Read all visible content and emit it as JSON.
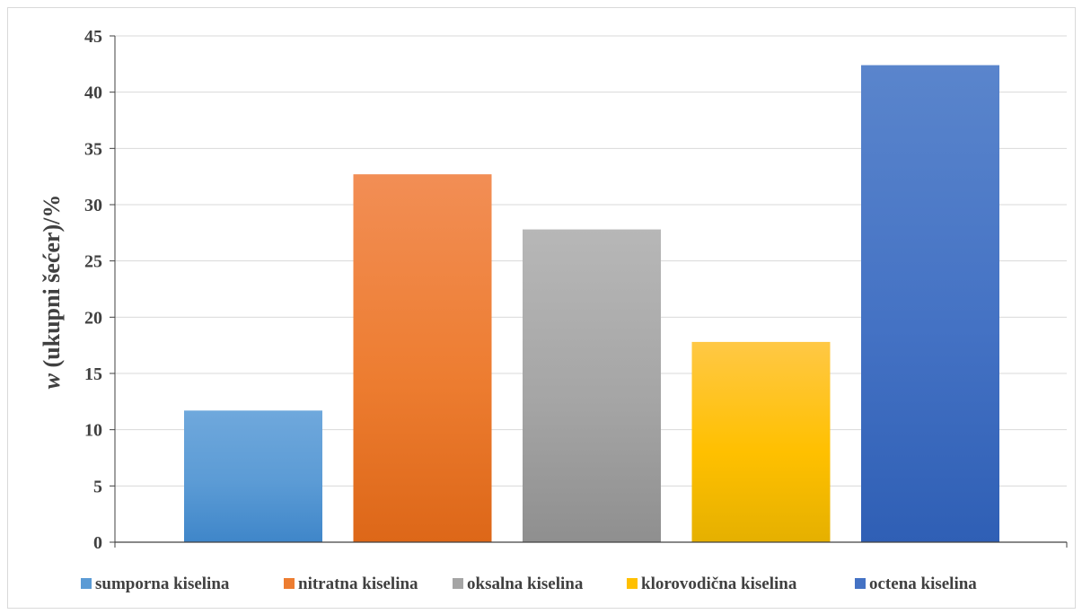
{
  "chart_data": {
    "type": "bar",
    "title": "",
    "xlabel": "",
    "ylabel_var": "w",
    "ylabel_rest": " (ukupni šećer)/%",
    "ylim": [
      0,
      45
    ],
    "yticks": [
      0,
      5,
      10,
      15,
      20,
      25,
      30,
      35,
      40,
      45
    ],
    "grid": true,
    "legend_position": "bottom",
    "categories": [
      "sumporna kiselina",
      "nitratna kiselina",
      "oksalna kiselina",
      "klorovodična kiselina",
      "octena kiselina"
    ],
    "values": [
      11.7,
      32.7,
      27.8,
      17.8,
      42.4
    ],
    "colors": [
      "#5b9bd5",
      "#ed7d31",
      "#a5a5a5",
      "#ffc000",
      "#4472c4"
    ],
    "colors_top": [
      "#6fa8dc",
      "#f28e55",
      "#b7b7b7",
      "#ffc845",
      "#5a85cc"
    ],
    "colors_bottom": [
      "#3f86c9",
      "#dd6718",
      "#8f8f8f",
      "#e5b000",
      "#2f5fb5"
    ]
  }
}
